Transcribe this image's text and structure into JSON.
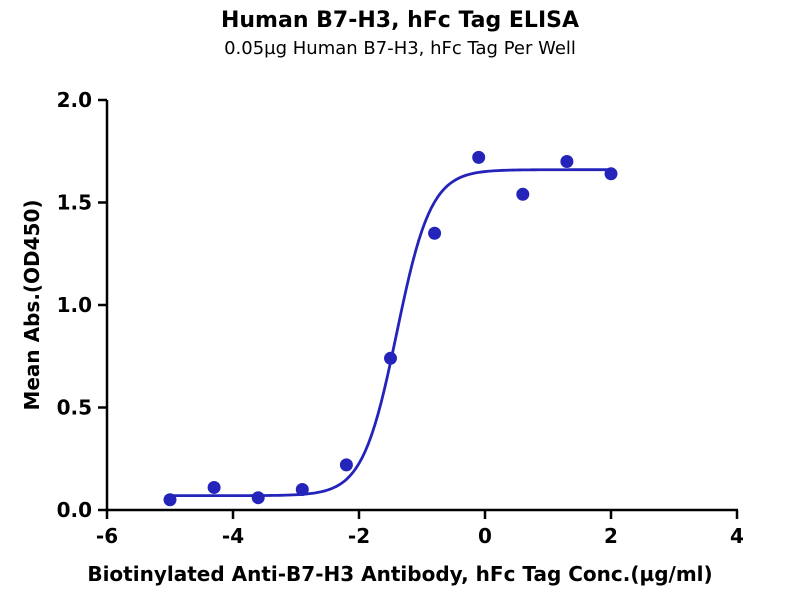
{
  "chart_data": {
    "type": "scatter",
    "title": "Human B7-H3, hFc Tag ELISA",
    "subtitle": "0.05µg Human B7-H3, hFc Tag Per Well",
    "xlabel": "Biotinylated Anti-B7-H3 Antibody, hFc Tag Conc.(µg/ml)",
    "ylabel": "Mean Abs.(OD450)",
    "xlim": [
      -6,
      4
    ],
    "ylim": [
      0,
      2
    ],
    "x_ticks": [
      -6,
      -4,
      -2,
      0,
      2,
      4
    ],
    "x_tick_labels": [
      "-6",
      "-4",
      "-2",
      "0",
      "2",
      "4"
    ],
    "y_ticks": [
      0.0,
      0.5,
      1.0,
      1.5,
      2.0
    ],
    "y_tick_labels": [
      "0.0",
      "0.5",
      "1.0",
      "1.5",
      "2.0"
    ],
    "grid": false,
    "legend": "none",
    "series": [
      {
        "name": "Human B7-H3, hFc Tag",
        "x": [
          -5.0,
          -4.3,
          -3.6,
          -2.9,
          -2.2,
          -1.5,
          -0.8,
          -0.1,
          0.6,
          1.3,
          2.0
        ],
        "y": [
          0.05,
          0.11,
          0.06,
          0.1,
          0.22,
          0.74,
          1.35,
          1.72,
          1.54,
          1.7,
          1.64
        ]
      }
    ],
    "curve_fit": {
      "model": "4PL sigmoid (log dose)",
      "bottom": 0.07,
      "top": 1.66,
      "logEC50": -1.4,
      "hill": 1.6,
      "x_range": [
        -5.0,
        2.0
      ]
    },
    "accent_color": "#2424bb",
    "axis_color": "#000000"
  }
}
